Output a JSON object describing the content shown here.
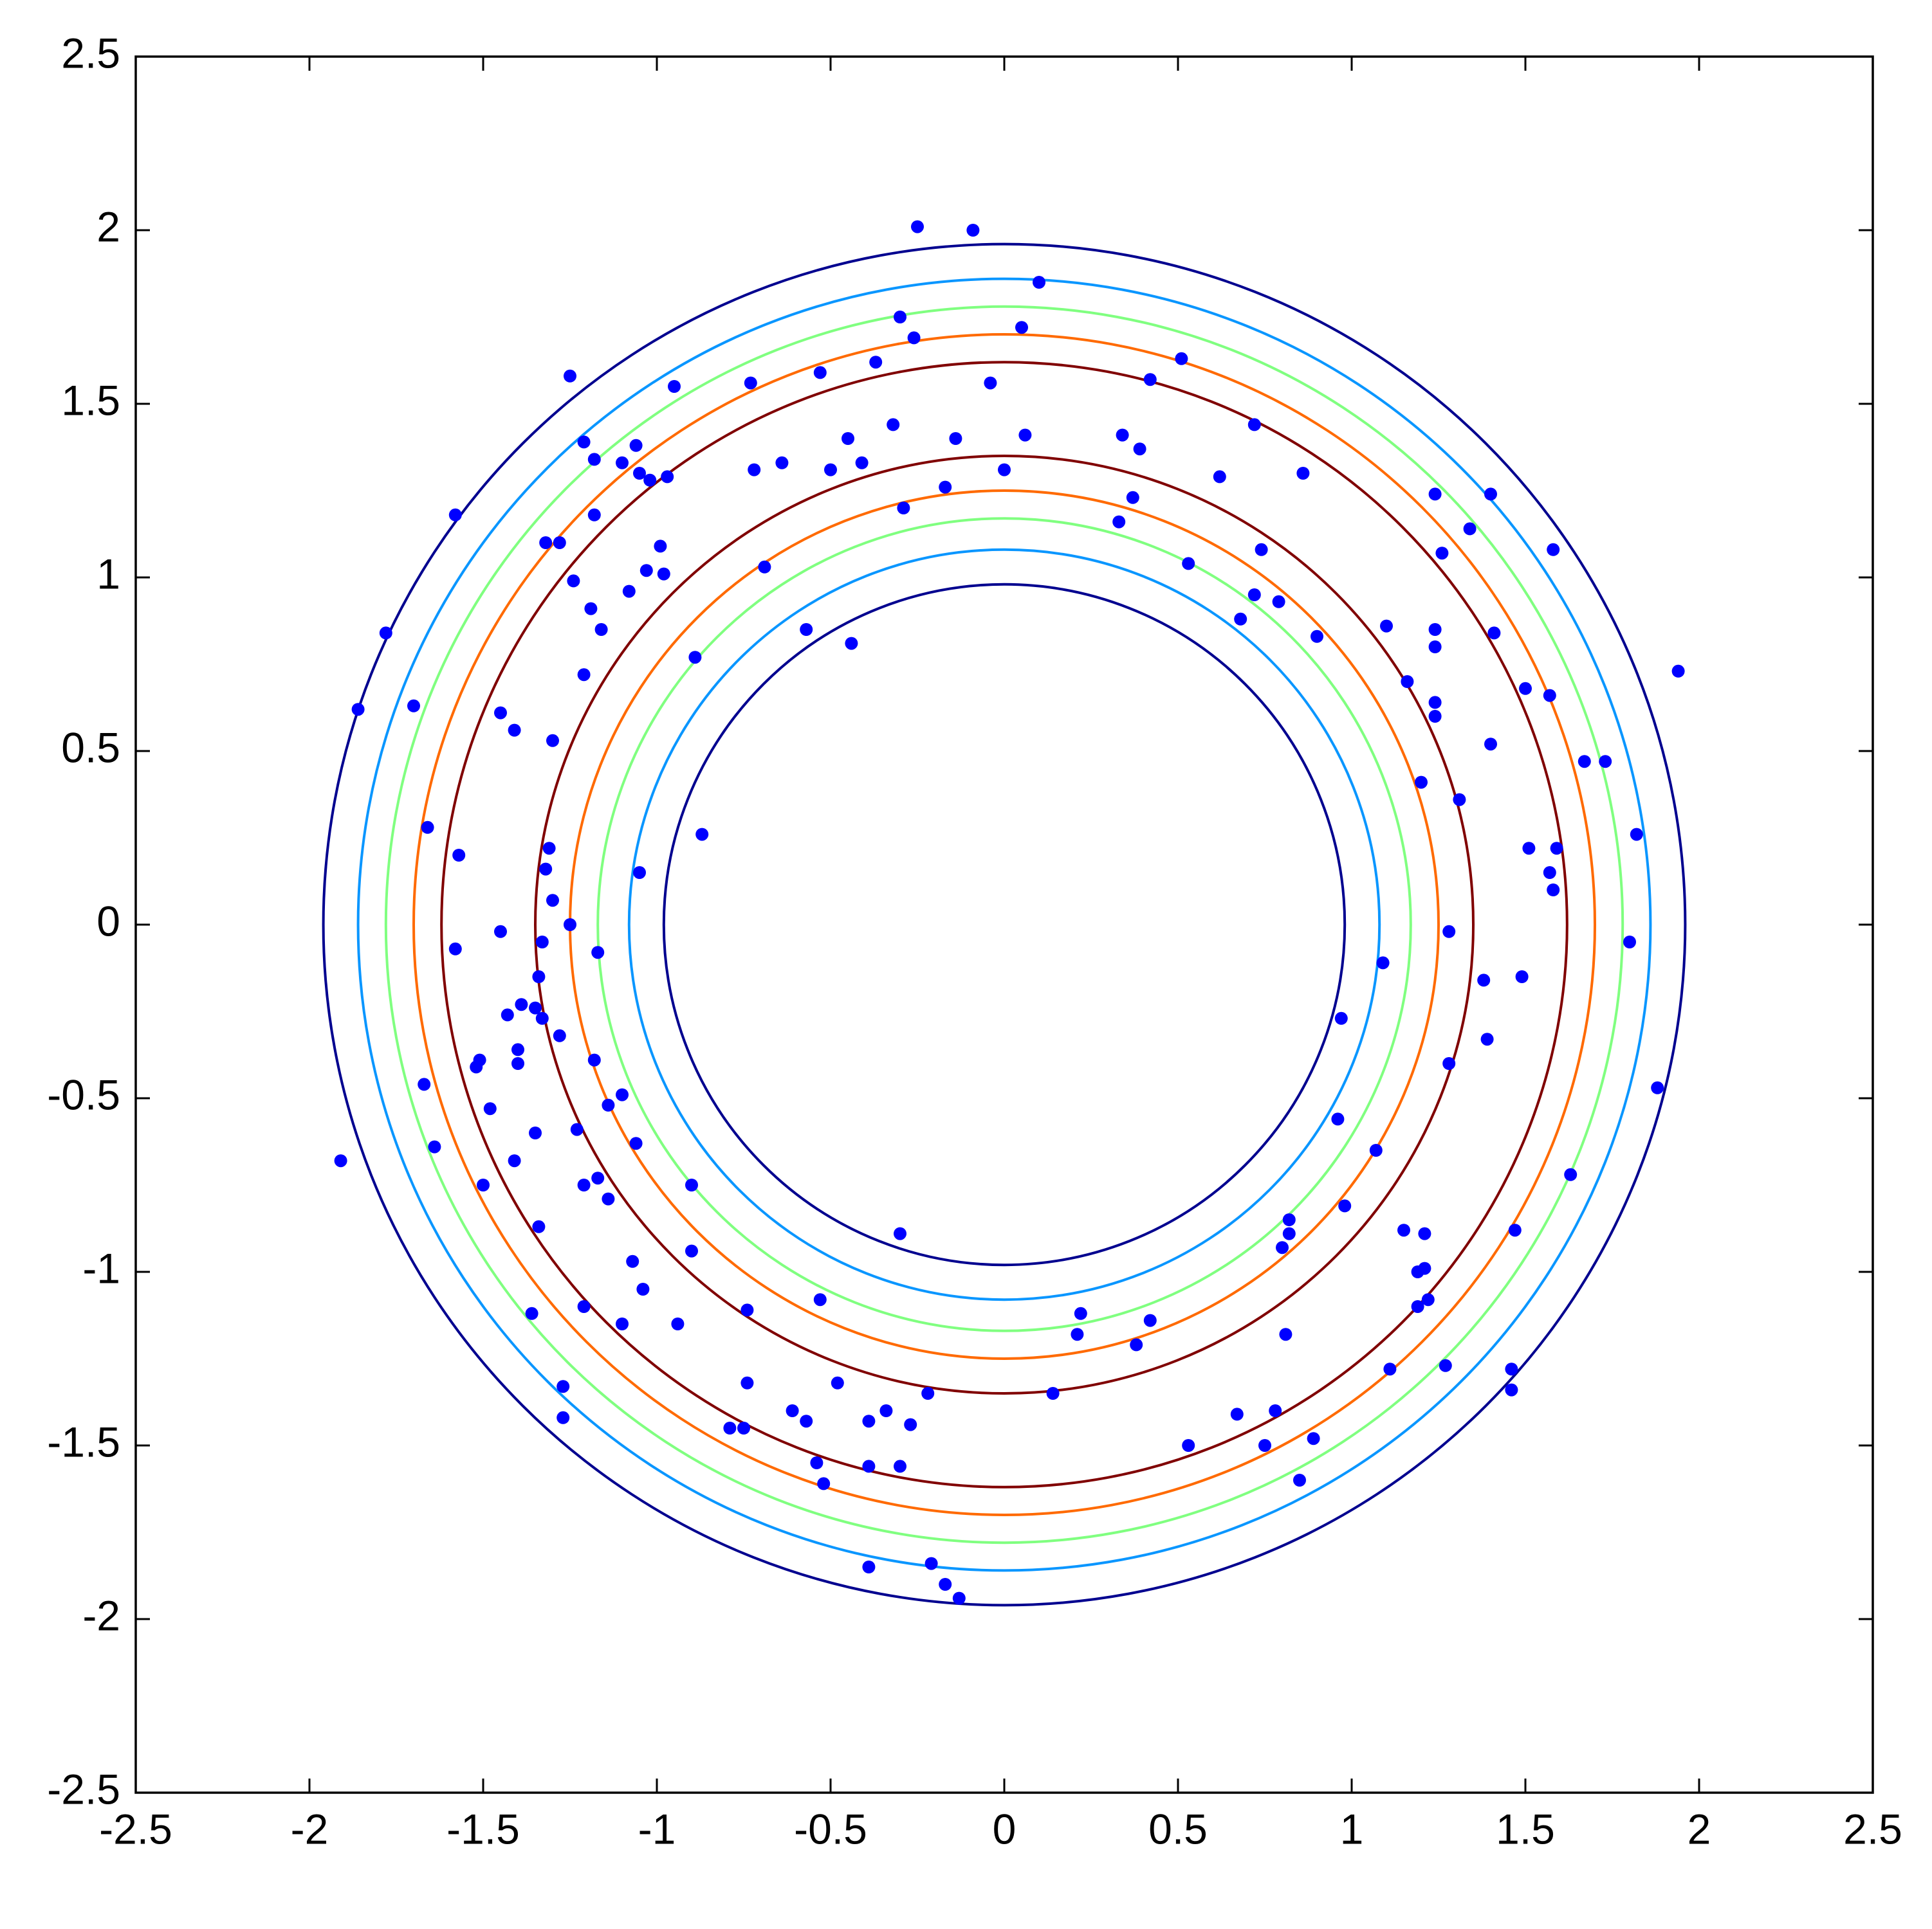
{
  "chart_data": {
    "type": "scatter",
    "xlim": [
      -2.5,
      2.5
    ],
    "ylim": [
      -2.5,
      2.5
    ],
    "xticks": [
      -2.5,
      -2,
      -1.5,
      -1,
      -0.5,
      0,
      0.5,
      1,
      1.5,
      2,
      2.5
    ],
    "yticks": [
      -2.5,
      -2,
      -1.5,
      -1,
      -0.5,
      0,
      0.5,
      1,
      1.5,
      2,
      2.5
    ],
    "grid": false,
    "contours": [
      {
        "color": "#00008f",
        "radius": 1.96
      },
      {
        "color": "#0a96ff",
        "radius": 1.86
      },
      {
        "color": "#80ff80",
        "radius": 1.78
      },
      {
        "color": "#ff6a00",
        "radius": 1.7
      },
      {
        "color": "#800000",
        "radius": 1.62
      },
      {
        "color": "#800000",
        "radius": 1.35
      },
      {
        "color": "#ff6a00",
        "radius": 1.25
      },
      {
        "color": "#80ff80",
        "radius": 1.17
      },
      {
        "color": "#0a96ff",
        "radius": 1.08
      },
      {
        "color": "#00008f",
        "radius": 0.98
      }
    ],
    "series": [
      {
        "color": "#0000ff",
        "x": [
          -0.25,
          -0.09,
          0.1,
          -0.3,
          -0.26,
          0.05,
          0.51,
          -1.25,
          -0.73,
          -0.53,
          -0.37,
          -0.04,
          0.42,
          -0.95,
          -0.32,
          0.72,
          -1.21,
          -0.45,
          -0.14,
          0.06,
          0.34,
          0.39,
          -1.18,
          -1.06,
          -0.64,
          -0.41,
          -1.1,
          -1.05,
          -0.72,
          -0.5,
          0.0,
          0.62,
          0.86,
          -1.02,
          -0.97,
          -0.17,
          1.24,
          1.4,
          0.37,
          -0.29,
          -1.18,
          -1.58,
          0.33,
          1.34,
          -1.32,
          -1.28,
          -0.99,
          0.74,
          1.58,
          1.26,
          -0.69,
          0.53,
          -1.03,
          -0.98,
          -1.24,
          -1.08,
          0.72,
          0.79,
          -1.19,
          0.68,
          1.1,
          -1.78,
          -1.16,
          -0.57,
          1.24,
          1.41,
          0.9,
          -0.44,
          1.24,
          -0.89,
          1.16,
          -1.21,
          1.5,
          1.57,
          1.94,
          1.24,
          -1.86,
          -1.7,
          -1.45,
          1.24,
          -1.41,
          -1.3,
          1.4,
          1.67,
          1.73,
          1.2,
          1.31,
          -1.66,
          -0.87,
          1.82,
          -1.31,
          1.51,
          1.59,
          -1.57,
          -1.32,
          -1.05,
          1.57,
          1.58,
          -1.3,
          -1.25,
          -1.45,
          1.28,
          -1.33,
          1.8,
          -1.58,
          -1.17,
          1.09,
          -1.34,
          1.38,
          1.49,
          -1.39,
          -1.35,
          -1.43,
          -1.33,
          0.97,
          -1.28,
          1.39,
          -1.4,
          -1.18,
          -1.51,
          -1.4,
          1.28,
          -1.52,
          -1.67,
          1.88,
          -1.1,
          -1.48,
          -1.14,
          0.96,
          -1.35,
          -1.23,
          -1.06,
          -1.64,
          1.07,
          -1.91,
          -1.41,
          1.63,
          -1.17,
          -1.21,
          -1.5,
          -0.9,
          -1.14,
          0.98,
          0.82,
          -1.34,
          1.15,
          1.47,
          0.82,
          1.21,
          -0.3,
          0.8,
          -0.9,
          -1.07,
          1.21,
          1.19,
          -1.04,
          -0.53,
          1.22,
          -1.21,
          1.19,
          0.22,
          -0.74,
          -1.36,
          0.42,
          -1.1,
          -0.94,
          0.21,
          0.81,
          0.38,
          1.11,
          1.27,
          1.46,
          -0.74,
          -1.27,
          -0.48,
          1.46,
          -0.22,
          0.14,
          -0.61,
          -0.34,
          -0.57,
          -1.27,
          -0.39,
          -0.27,
          0.67,
          0.78,
          -0.79,
          -0.75,
          0.89,
          0.53,
          0.75,
          -0.54,
          -0.3,
          -0.39,
          0.85,
          -0.52,
          -0.39,
          -0.21,
          -0.17,
          -0.13
        ],
        "y": [
          2.01,
          2.0,
          1.85,
          1.75,
          1.69,
          1.72,
          1.63,
          1.58,
          1.56,
          1.59,
          1.62,
          1.56,
          1.57,
          1.55,
          1.44,
          1.44,
          1.39,
          1.4,
          1.4,
          1.41,
          1.41,
          1.37,
          1.34,
          1.38,
          1.33,
          1.33,
          1.33,
          1.3,
          1.31,
          1.31,
          1.31,
          1.29,
          1.3,
          1.28,
          1.29,
          1.26,
          1.24,
          1.24,
          1.23,
          1.2,
          1.18,
          1.18,
          1.16,
          1.14,
          1.1,
          1.1,
          1.09,
          1.08,
          1.08,
          1.07,
          1.03,
          1.04,
          1.02,
          1.01,
          0.99,
          0.96,
          0.95,
          0.93,
          0.91,
          0.88,
          0.86,
          0.84,
          0.85,
          0.85,
          0.85,
          0.84,
          0.83,
          0.81,
          0.8,
          0.77,
          0.7,
          0.72,
          0.68,
          0.66,
          0.73,
          0.64,
          0.62,
          0.63,
          0.61,
          0.6,
          0.56,
          0.53,
          0.52,
          0.47,
          0.47,
          0.41,
          0.36,
          0.28,
          0.26,
          0.26,
          0.22,
          0.22,
          0.22,
          0.2,
          0.16,
          0.15,
          0.15,
          0.1,
          0.07,
          0.0,
          -0.02,
          -0.02,
          -0.05,
          -0.05,
          -0.07,
          -0.08,
          -0.11,
          -0.15,
          -0.16,
          -0.15,
          -0.23,
          -0.24,
          -0.26,
          -0.27,
          -0.27,
          -0.32,
          -0.33,
          -0.36,
          -0.39,
          -0.39,
          -0.4,
          -0.4,
          -0.41,
          -0.46,
          -0.47,
          -0.49,
          -0.53,
          -0.52,
          -0.56,
          -0.6,
          -0.59,
          -0.63,
          -0.64,
          -0.65,
          -0.68,
          -0.68,
          -0.72,
          -0.73,
          -0.75,
          -0.75,
          -0.75,
          -0.79,
          -0.81,
          -0.85,
          -0.87,
          -0.88,
          -0.88,
          -0.89,
          -0.89,
          -0.89,
          -0.93,
          -0.94,
          -0.97,
          -0.99,
          -1.0,
          -1.05,
          -1.08,
          -1.08,
          -1.1,
          -1.1,
          -1.12,
          -1.11,
          -1.12,
          -1.14,
          -1.15,
          -1.15,
          -1.18,
          -1.18,
          -1.21,
          -1.28,
          -1.27,
          -1.28,
          -1.32,
          -1.33,
          -1.32,
          -1.34,
          -1.35,
          -1.35,
          -1.4,
          -1.4,
          -1.43,
          -1.42,
          -1.43,
          -1.44,
          -1.41,
          -1.4,
          -1.45,
          -1.45,
          -1.48,
          -1.5,
          -1.5,
          -1.55,
          -1.56,
          -1.56,
          -1.6,
          -1.61,
          -1.85,
          -1.84,
          -1.9,
          -1.94
        ]
      }
    ]
  }
}
